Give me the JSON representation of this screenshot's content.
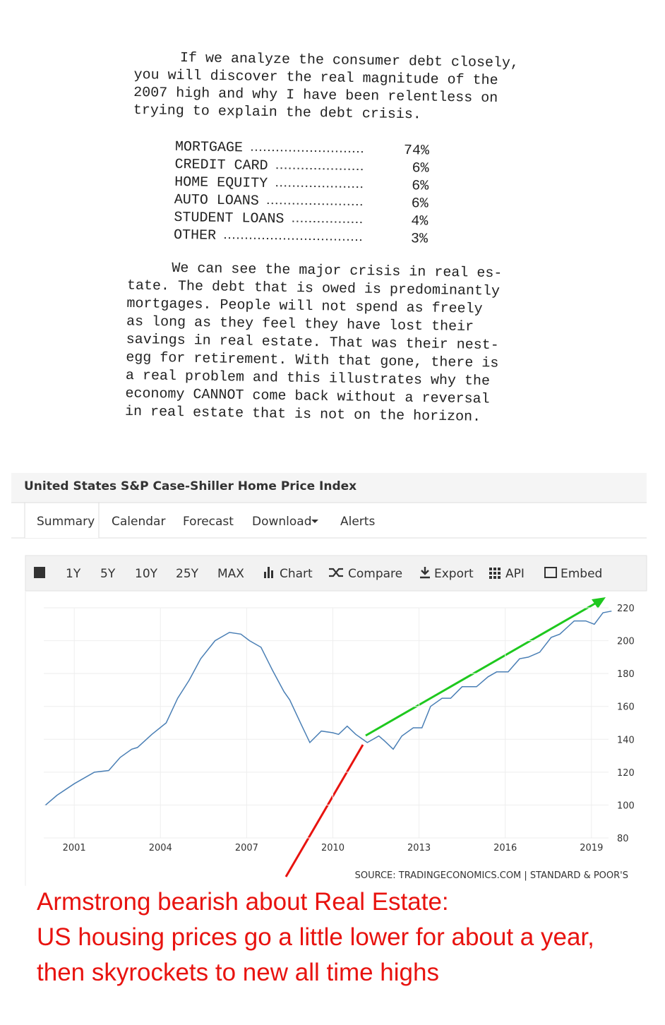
{
  "document": {
    "paragraph_1": [
      "If we analyze the consumer debt closely,",
      "you will discover the real magnitude of the",
      "2007 high and why I have been relentless on",
      "trying to explain the debt crisis."
    ],
    "table": [
      [
        "MORTGAGE",
        "74%"
      ],
      [
        "CREDIT CARD",
        "6%"
      ],
      [
        "HOME EQUITY",
        "6%"
      ],
      [
        "AUTO LOANS",
        "6%"
      ],
      [
        "STUDENT LOANS",
        "4%"
      ],
      [
        "OTHER",
        "3%"
      ]
    ],
    "paragraph_2": [
      "We can see the major crisis in real es-",
      "tate. The debt that is owed is predominantly",
      "mortgages. People will not spend as freely",
      "as long as they feel they have lost their",
      "savings in real estate. That was their nest-",
      "egg for retirement. With that gone, there is",
      "a real problem and this illustrates why the",
      "economy CANNOT come back without a reversal",
      "in real estate that is not on the horizon."
    ]
  },
  "widget": {
    "title": "United States S&P Case-Shiller Home Price Index",
    "tabs": [
      "Summary",
      "Calendar",
      "Forecast",
      "Download",
      "Alerts"
    ],
    "toolbar": [
      "1Y",
      "5Y",
      "10Y",
      "25Y",
      "MAX",
      "Chart",
      "Compare",
      "Export",
      "API",
      "Embed"
    ]
  },
  "chart_data": {
    "type": "line",
    "x": [
      2000.0,
      2000.4,
      2001.0,
      2001.7,
      2002.2,
      2002.6,
      2003.0,
      2003.2,
      2003.7,
      2004.2,
      2004.6,
      2005.0,
      2005.4,
      2005.9,
      2006.4,
      2006.8,
      2007.1,
      2007.5,
      2007.9,
      2008.3,
      2008.5,
      2008.9,
      2009.2,
      2009.6,
      2010.0,
      2010.2,
      2010.5,
      2010.8,
      2011.2,
      2011.6,
      2011.8,
      2012.1,
      2012.4,
      2012.8,
      2013.1,
      2013.4,
      2013.8,
      2014.1,
      2014.5,
      2015.0,
      2015.4,
      2015.7,
      2016.1,
      2016.5,
      2016.8,
      2017.2,
      2017.6,
      2017.9,
      2018.4,
      2018.8,
      2019.1,
      2019.4,
      2019.7
    ],
    "values": [
      100,
      106,
      113,
      120,
      121,
      129,
      134,
      135,
      143,
      150,
      165,
      176,
      189,
      200,
      205,
      204,
      200,
      196,
      182,
      169,
      164,
      149,
      138,
      145,
      144,
      143,
      148,
      143,
      138,
      142,
      139,
      134,
      142,
      147,
      147,
      160,
      165,
      165,
      172,
      172,
      178,
      181,
      181,
      189,
      190,
      193,
      202,
      204,
      212,
      212,
      210,
      217,
      218
    ],
    "color": "#4a7fb5",
    "xlim": [
      1999.9,
      2020.0
    ],
    "ylim": [
      80,
      220
    ],
    "xticks": [
      2001,
      2004,
      2007,
      2010,
      2013,
      2016,
      2019
    ],
    "yticks": [
      80,
      100,
      120,
      140,
      160,
      180,
      200,
      220
    ],
    "grid": true,
    "source": "SOURCE: TRADINGECONOMICS.COM | STANDARD & POOR'S"
  },
  "annotation": [
    "Armstrong bearish about Real Estate:",
    "US housing prices go a little lower for about a year,",
    "then skyrockets to new all time highs"
  ]
}
